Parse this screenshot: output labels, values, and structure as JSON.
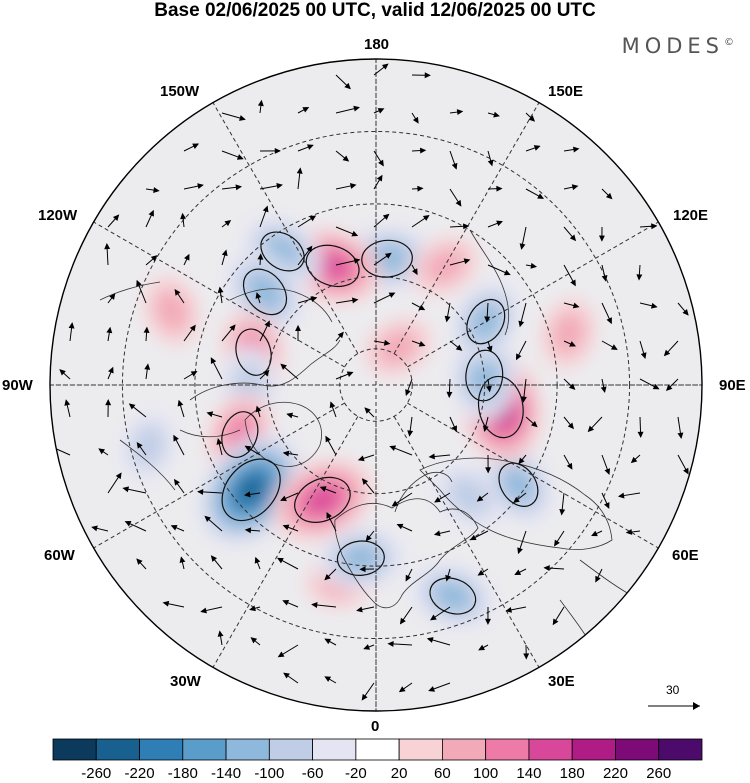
{
  "title": "Base 02/06/2025 00 UTC, valid 12/06/2025 00 UTC",
  "brand": "MODES",
  "brand_mark": "©",
  "longitude_labels": {
    "lon_180": "180",
    "lon_150e": "150E",
    "lon_120e": "120E",
    "lon_90e": "90E",
    "lon_60e": "60E",
    "lon_30e": "30E",
    "lon_0": "0",
    "lon_30w": "30W",
    "lon_60w": "60W",
    "lon_90w": "90W",
    "lon_120w": "120W",
    "lon_150w": "150W"
  },
  "reference_vector": {
    "label": "30"
  },
  "colorbar": {
    "labels": [
      "-260",
      "-220",
      "-180",
      "-140",
      "-100",
      "-60",
      "-20",
      "20",
      "60",
      "100",
      "140",
      "180",
      "220",
      "260"
    ],
    "colors": [
      "#0b3a5c",
      "#17608f",
      "#2f7fb6",
      "#5a9dcb",
      "#8fb9dc",
      "#bfcde6",
      "#e4e4f2",
      "#ffffff",
      "#f7d3d6",
      "#f2a9b8",
      "#ee7ba7",
      "#d9479b",
      "#b01c86",
      "#7c0b78",
      "#4c0a6a"
    ]
  },
  "anomaly_blobs": [
    {
      "lon": 175,
      "lat": 55,
      "value": -120
    },
    {
      "lon": 150,
      "lat": 52,
      "value": 60
    },
    {
      "lon": -160,
      "lat": 55,
      "value": 140
    },
    {
      "lon": -145,
      "lat": 45,
      "value": -100
    },
    {
      "lon": -130,
      "lat": 50,
      "value": -120
    },
    {
      "lon": -110,
      "lat": 30,
      "value": 60
    },
    {
      "lon": -105,
      "lat": 55,
      "value": 100
    },
    {
      "lon": -90,
      "lat": 55,
      "value": -80
    },
    {
      "lon": -70,
      "lat": 50,
      "value": 100
    },
    {
      "lon": -50,
      "lat": 45,
      "value": -220
    },
    {
      "lon": -25,
      "lat": 55,
      "value": 160
    },
    {
      "lon": -10,
      "lat": 35,
      "value": 60
    },
    {
      "lon": -5,
      "lat": 42,
      "value": -100
    },
    {
      "lon": 20,
      "lat": 28,
      "value": -100
    },
    {
      "lon": 40,
      "lat": 50,
      "value": -80
    },
    {
      "lon": 55,
      "lat": 42,
      "value": -100
    },
    {
      "lon": 80,
      "lat": 55,
      "value": 180
    },
    {
      "lon": 95,
      "lat": 60,
      "value": -120
    },
    {
      "lon": 120,
      "lat": 55,
      "value": -100
    },
    {
      "lon": 105,
      "lat": 35,
      "value": 60
    },
    {
      "lon": -75,
      "lat": 25,
      "value": -60
    },
    {
      "lon": 150,
      "lat": 78,
      "value": 60
    }
  ]
}
